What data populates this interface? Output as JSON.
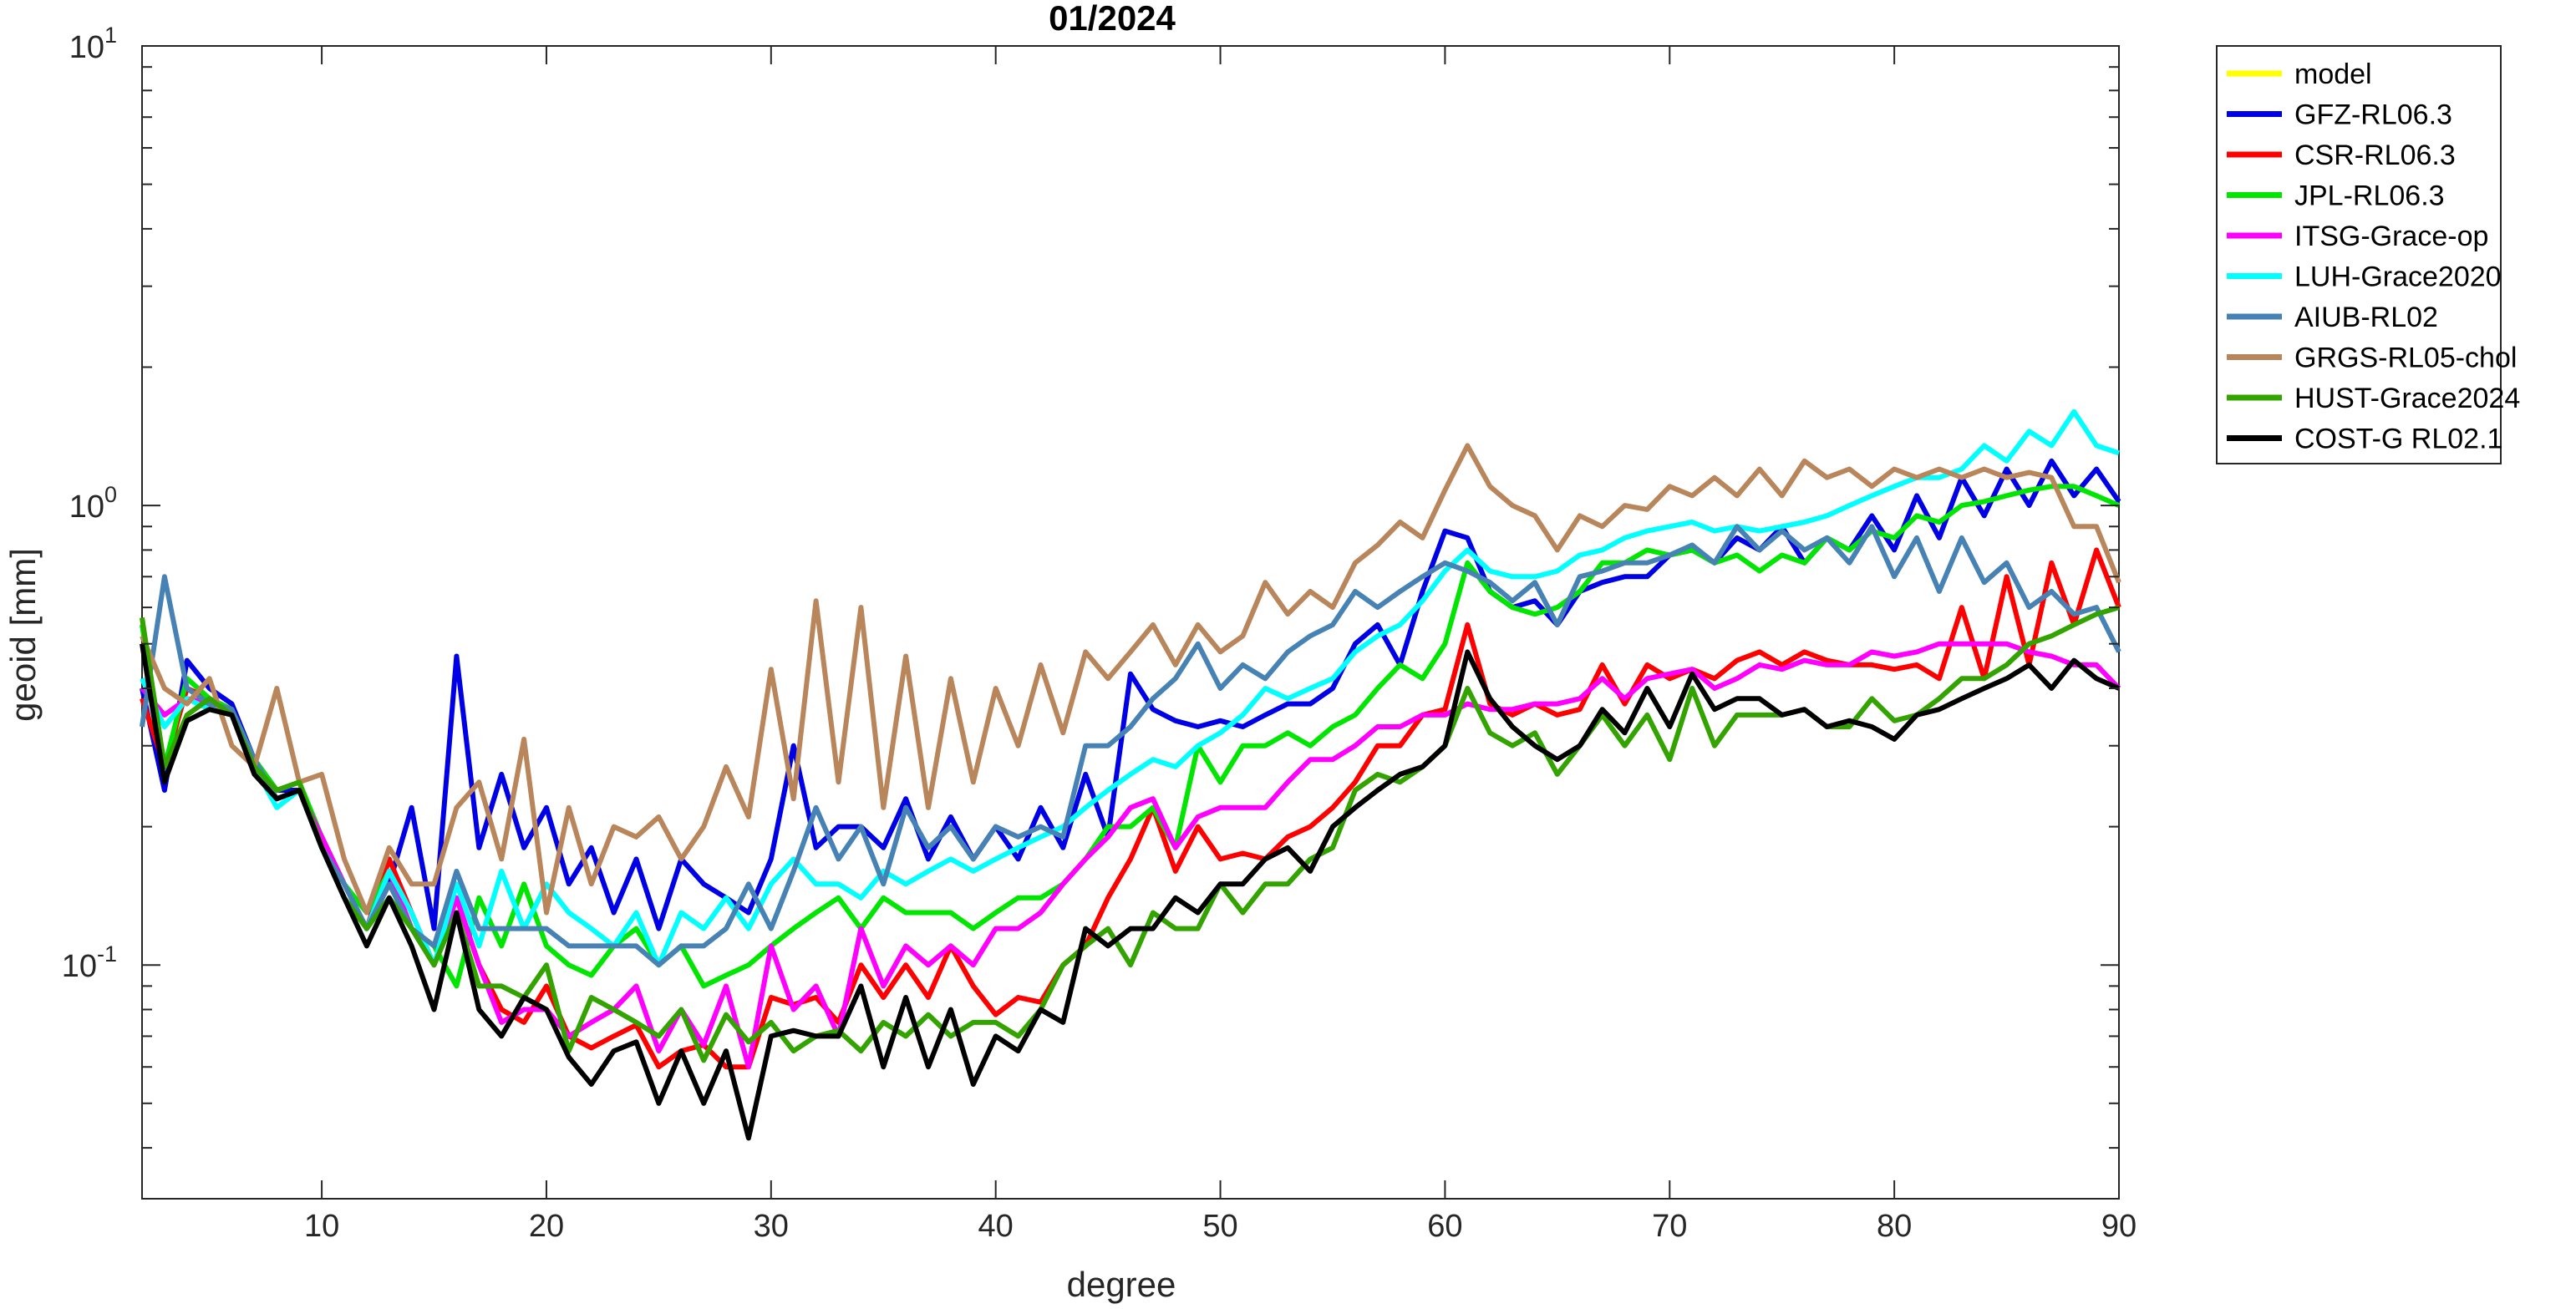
{
  "chart_data": {
    "type": "line",
    "title": "01/2024",
    "xlabel": "degree",
    "ylabel": "geoid [mm]",
    "xlim": [
      2,
      90
    ],
    "ylim": [
      0.031,
      10
    ],
    "yscale": "log",
    "xticks": [
      10,
      20,
      30,
      40,
      50,
      60,
      70,
      80,
      90
    ],
    "yticks": [
      {
        "value": 0.1,
        "base": "10",
        "exp": "-1"
      },
      {
        "value": 1,
        "base": "10",
        "exp": "0"
      },
      {
        "value": 10,
        "base": "10",
        "exp": "1"
      }
    ],
    "grid": false,
    "legend_position": "outside-top-right",
    "x_start": 2,
    "series": [
      {
        "name": "model",
        "color": "#ffff00",
        "values": []
      },
      {
        "name": "GFZ-RL06.3",
        "color": "#0000e6",
        "values": [
          0.4,
          0.24,
          0.46,
          0.4,
          0.37,
          0.28,
          0.24,
          0.24,
          0.19,
          0.15,
          0.12,
          0.15,
          0.22,
          0.12,
          0.47,
          0.18,
          0.26,
          0.18,
          0.22,
          0.15,
          0.18,
          0.13,
          0.17,
          0.12,
          0.17,
          0.15,
          0.14,
          0.13,
          0.17,
          0.3,
          0.18,
          0.2,
          0.2,
          0.18,
          0.23,
          0.17,
          0.21,
          0.17,
          0.2,
          0.17,
          0.22,
          0.18,
          0.26,
          0.19,
          0.43,
          0.36,
          0.34,
          0.33,
          0.34,
          0.33,
          0.35,
          0.37,
          0.37,
          0.4,
          0.5,
          0.55,
          0.45,
          0.65,
          0.88,
          0.85,
          0.65,
          0.6,
          0.62,
          0.55,
          0.65,
          0.68,
          0.7,
          0.7,
          0.78,
          0.8,
          0.75,
          0.85,
          0.8,
          0.9,
          0.75,
          0.85,
          0.8,
          0.95,
          0.8,
          1.05,
          0.85,
          1.15,
          0.95,
          1.2,
          1.0,
          1.25,
          1.05,
          1.2,
          1.02
        ]
      },
      {
        "name": "CSR-RL06.3",
        "color": "#ff0000",
        "values": [
          0.38,
          0.27,
          0.4,
          0.38,
          0.36,
          0.27,
          0.23,
          0.24,
          0.19,
          0.15,
          0.12,
          0.17,
          0.13,
          0.1,
          0.14,
          0.1,
          0.08,
          0.075,
          0.09,
          0.07,
          0.066,
          0.07,
          0.074,
          0.06,
          0.065,
          0.067,
          0.06,
          0.06,
          0.085,
          0.082,
          0.085,
          0.075,
          0.1,
          0.085,
          0.1,
          0.085,
          0.11,
          0.09,
          0.078,
          0.085,
          0.083,
          0.1,
          0.11,
          0.14,
          0.17,
          0.22,
          0.16,
          0.2,
          0.17,
          0.175,
          0.17,
          0.19,
          0.2,
          0.22,
          0.25,
          0.3,
          0.3,
          0.35,
          0.36,
          0.55,
          0.37,
          0.35,
          0.37,
          0.35,
          0.36,
          0.45,
          0.37,
          0.45,
          0.42,
          0.44,
          0.42,
          0.46,
          0.48,
          0.45,
          0.48,
          0.46,
          0.45,
          0.45,
          0.44,
          0.45,
          0.42,
          0.6,
          0.42,
          0.7,
          0.45,
          0.75,
          0.55,
          0.8,
          0.6
        ]
      },
      {
        "name": "JPL-RL06.3",
        "color": "#00e600",
        "values": [
          0.55,
          0.27,
          0.42,
          0.38,
          0.36,
          0.28,
          0.24,
          0.25,
          0.19,
          0.15,
          0.13,
          0.16,
          0.12,
          0.11,
          0.09,
          0.14,
          0.11,
          0.15,
          0.11,
          0.1,
          0.095,
          0.11,
          0.12,
          0.1,
          0.11,
          0.09,
          0.095,
          0.1,
          0.11,
          0.12,
          0.13,
          0.14,
          0.12,
          0.14,
          0.13,
          0.13,
          0.13,
          0.12,
          0.13,
          0.14,
          0.14,
          0.15,
          0.17,
          0.2,
          0.2,
          0.22,
          0.18,
          0.3,
          0.25,
          0.3,
          0.3,
          0.32,
          0.3,
          0.33,
          0.35,
          0.4,
          0.45,
          0.42,
          0.5,
          0.75,
          0.65,
          0.6,
          0.58,
          0.6,
          0.65,
          0.75,
          0.75,
          0.8,
          0.78,
          0.8,
          0.75,
          0.78,
          0.72,
          0.78,
          0.75,
          0.85,
          0.8,
          0.88,
          0.85,
          0.95,
          0.92,
          1.0,
          1.02,
          1.05,
          1.08,
          1.1,
          1.1,
          1.05,
          1.0
        ]
      },
      {
        "name": "ITSG-Grace-op",
        "color": "#ff00ff",
        "values": [
          0.4,
          0.35,
          0.38,
          0.37,
          0.36,
          0.27,
          0.23,
          0.24,
          0.19,
          0.15,
          0.12,
          0.16,
          0.12,
          0.1,
          0.14,
          0.1,
          0.075,
          0.08,
          0.08,
          0.07,
          0.075,
          0.08,
          0.09,
          0.065,
          0.08,
          0.067,
          0.09,
          0.06,
          0.11,
          0.08,
          0.09,
          0.07,
          0.12,
          0.09,
          0.11,
          0.1,
          0.11,
          0.1,
          0.12,
          0.12,
          0.13,
          0.15,
          0.17,
          0.19,
          0.22,
          0.23,
          0.18,
          0.21,
          0.22,
          0.22,
          0.22,
          0.25,
          0.28,
          0.28,
          0.3,
          0.33,
          0.33,
          0.35,
          0.35,
          0.37,
          0.36,
          0.36,
          0.37,
          0.37,
          0.38,
          0.42,
          0.38,
          0.42,
          0.43,
          0.44,
          0.4,
          0.42,
          0.45,
          0.44,
          0.46,
          0.45,
          0.45,
          0.48,
          0.47,
          0.48,
          0.5,
          0.5,
          0.5,
          0.5,
          0.48,
          0.47,
          0.45,
          0.45,
          0.4
        ]
      },
      {
        "name": "LUH-Grace2020",
        "color": "#00ffff",
        "values": [
          0.42,
          0.33,
          0.38,
          0.36,
          0.35,
          0.27,
          0.22,
          0.24,
          0.18,
          0.15,
          0.12,
          0.16,
          0.13,
          0.1,
          0.15,
          0.11,
          0.16,
          0.12,
          0.15,
          0.13,
          0.12,
          0.11,
          0.13,
          0.1,
          0.13,
          0.12,
          0.14,
          0.12,
          0.15,
          0.17,
          0.15,
          0.15,
          0.14,
          0.16,
          0.15,
          0.16,
          0.17,
          0.16,
          0.17,
          0.18,
          0.19,
          0.2,
          0.22,
          0.24,
          0.26,
          0.28,
          0.27,
          0.3,
          0.32,
          0.35,
          0.4,
          0.38,
          0.4,
          0.42,
          0.48,
          0.52,
          0.55,
          0.62,
          0.72,
          0.8,
          0.72,
          0.7,
          0.7,
          0.72,
          0.78,
          0.8,
          0.85,
          0.88,
          0.9,
          0.92,
          0.88,
          0.9,
          0.88,
          0.9,
          0.92,
          0.95,
          1.0,
          1.05,
          1.1,
          1.15,
          1.15,
          1.2,
          1.35,
          1.25,
          1.45,
          1.35,
          1.6,
          1.35,
          1.3
        ]
      },
      {
        "name": "AIUB-RL02",
        "color": "#4682b4",
        "values": [
          0.33,
          0.7,
          0.4,
          0.37,
          0.36,
          0.28,
          0.23,
          0.24,
          0.18,
          0.15,
          0.12,
          0.15,
          0.12,
          0.11,
          0.16,
          0.12,
          0.12,
          0.12,
          0.12,
          0.11,
          0.11,
          0.11,
          0.11,
          0.1,
          0.11,
          0.11,
          0.12,
          0.15,
          0.12,
          0.16,
          0.22,
          0.17,
          0.2,
          0.15,
          0.22,
          0.18,
          0.2,
          0.17,
          0.2,
          0.19,
          0.2,
          0.19,
          0.3,
          0.3,
          0.33,
          0.38,
          0.42,
          0.5,
          0.4,
          0.45,
          0.42,
          0.48,
          0.52,
          0.55,
          0.65,
          0.6,
          0.65,
          0.7,
          0.75,
          0.72,
          0.68,
          0.62,
          0.68,
          0.55,
          0.7,
          0.72,
          0.75,
          0.75,
          0.78,
          0.82,
          0.75,
          0.9,
          0.8,
          0.88,
          0.8,
          0.85,
          0.75,
          0.9,
          0.7,
          0.85,
          0.65,
          0.85,
          0.68,
          0.75,
          0.6,
          0.65,
          0.58,
          0.6,
          0.48
        ]
      },
      {
        "name": "GRGS-RL05-chol",
        "color": "#b8865a",
        "values": [
          0.52,
          0.4,
          0.37,
          0.42,
          0.3,
          0.27,
          0.4,
          0.25,
          0.26,
          0.17,
          0.13,
          0.18,
          0.15,
          0.15,
          0.22,
          0.25,
          0.17,
          0.31,
          0.13,
          0.22,
          0.15,
          0.2,
          0.19,
          0.21,
          0.17,
          0.2,
          0.27,
          0.21,
          0.44,
          0.23,
          0.62,
          0.25,
          0.6,
          0.22,
          0.47,
          0.22,
          0.42,
          0.25,
          0.4,
          0.3,
          0.45,
          0.32,
          0.48,
          0.42,
          0.48,
          0.55,
          0.45,
          0.55,
          0.48,
          0.52,
          0.68,
          0.58,
          0.65,
          0.6,
          0.75,
          0.82,
          0.92,
          0.85,
          1.08,
          1.35,
          1.1,
          1.0,
          0.95,
          0.8,
          0.95,
          0.9,
          1.0,
          0.98,
          1.1,
          1.05,
          1.15,
          1.05,
          1.2,
          1.05,
          1.25,
          1.15,
          1.2,
          1.1,
          1.2,
          1.15,
          1.2,
          1.15,
          1.2,
          1.15,
          1.18,
          1.15,
          0.9,
          0.9,
          0.68
        ]
      },
      {
        "name": "HUST-Grace2024",
        "color": "#33a300",
        "values": [
          0.57,
          0.27,
          0.35,
          0.38,
          0.35,
          0.27,
          0.24,
          0.25,
          0.18,
          0.14,
          0.12,
          0.14,
          0.12,
          0.1,
          0.13,
          0.09,
          0.09,
          0.085,
          0.1,
          0.065,
          0.085,
          0.08,
          0.075,
          0.07,
          0.08,
          0.062,
          0.078,
          0.068,
          0.075,
          0.065,
          0.07,
          0.072,
          0.065,
          0.075,
          0.07,
          0.078,
          0.07,
          0.075,
          0.075,
          0.07,
          0.08,
          0.1,
          0.11,
          0.12,
          0.1,
          0.13,
          0.12,
          0.12,
          0.15,
          0.13,
          0.15,
          0.15,
          0.17,
          0.18,
          0.24,
          0.26,
          0.25,
          0.27,
          0.3,
          0.4,
          0.32,
          0.3,
          0.32,
          0.26,
          0.3,
          0.35,
          0.3,
          0.35,
          0.28,
          0.4,
          0.3,
          0.35,
          0.35,
          0.35,
          0.36,
          0.33,
          0.33,
          0.38,
          0.34,
          0.35,
          0.38,
          0.42,
          0.42,
          0.45,
          0.5,
          0.52,
          0.55,
          0.58,
          0.6
        ]
      },
      {
        "name": "COST-G RL02.1",
        "color": "#000000",
        "values": [
          0.5,
          0.25,
          0.34,
          0.36,
          0.35,
          0.26,
          0.23,
          0.24,
          0.18,
          0.14,
          0.11,
          0.14,
          0.11,
          0.08,
          0.13,
          0.08,
          0.07,
          0.085,
          0.08,
          0.063,
          0.055,
          0.065,
          0.068,
          0.05,
          0.065,
          0.05,
          0.065,
          0.042,
          0.07,
          0.072,
          0.07,
          0.07,
          0.09,
          0.06,
          0.085,
          0.06,
          0.08,
          0.055,
          0.07,
          0.065,
          0.08,
          0.075,
          0.12,
          0.11,
          0.12,
          0.12,
          0.14,
          0.13,
          0.15,
          0.15,
          0.17,
          0.18,
          0.16,
          0.2,
          0.22,
          0.24,
          0.26,
          0.27,
          0.3,
          0.48,
          0.38,
          0.33,
          0.3,
          0.28,
          0.3,
          0.36,
          0.32,
          0.4,
          0.33,
          0.43,
          0.36,
          0.38,
          0.38,
          0.35,
          0.36,
          0.33,
          0.34,
          0.33,
          0.31,
          0.35,
          0.36,
          0.38,
          0.4,
          0.42,
          0.45,
          0.4,
          0.46,
          0.42,
          0.4
        ]
      }
    ]
  }
}
